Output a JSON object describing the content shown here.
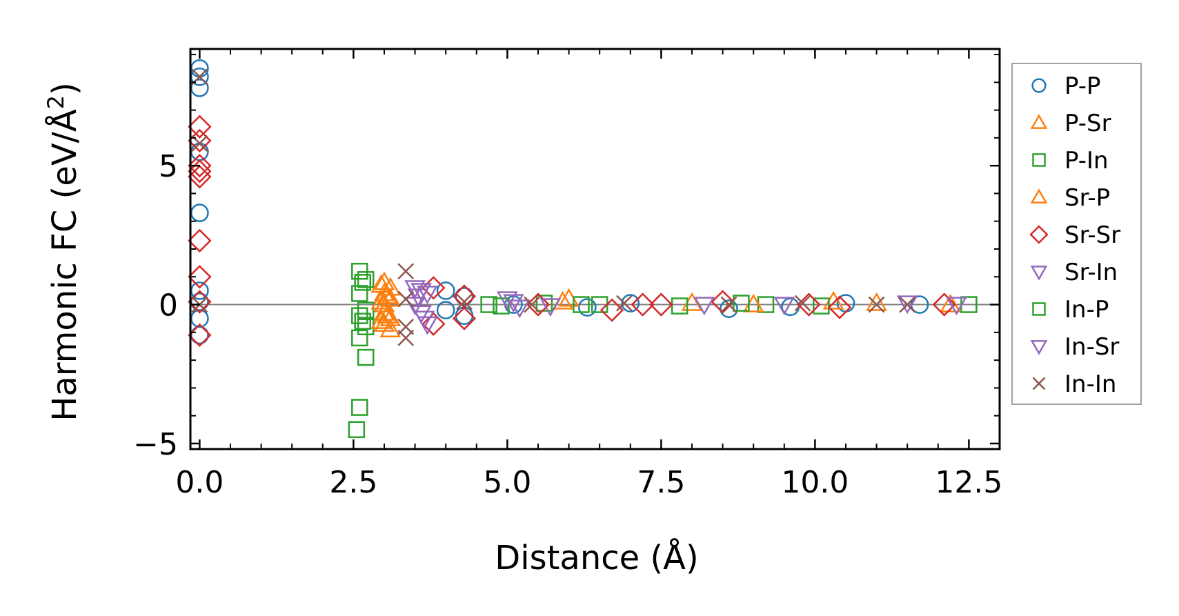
{
  "chart_data": {
    "type": "scatter",
    "title": "",
    "xlabel": "Distance (Å)",
    "ylabel_main": "Harmonic FC (eV/Å",
    "ylabel_sup": "2",
    "ylabel_close": ")",
    "xlim": [
      -0.15,
      13.0
    ],
    "ylim": [
      -5.2,
      9.2
    ],
    "x_ticks": [
      0.0,
      2.5,
      5.0,
      7.5,
      10.0,
      12.5
    ],
    "x_tick_labels": [
      "0.0",
      "2.5",
      "5.0",
      "7.5",
      "10.0",
      "12.5"
    ],
    "y_ticks": [
      -5,
      0,
      5
    ],
    "y_tick_labels": [
      "−5",
      "0",
      "5"
    ],
    "zero_line": 0,
    "legend_position": "right-outside",
    "series": [
      {
        "name": "P-P",
        "marker": "circle",
        "color": "#1f77b4",
        "points": [
          [
            0,
            8.5
          ],
          [
            0,
            8.2
          ],
          [
            0,
            7.8
          ],
          [
            0,
            5.5
          ],
          [
            0,
            3.3
          ],
          [
            0,
            0.5
          ],
          [
            0,
            0.1
          ],
          [
            0,
            -0.5
          ],
          [
            0,
            -1.1
          ],
          [
            4.0,
            0.5
          ],
          [
            4.0,
            -0.2
          ],
          [
            4.3,
            0.3
          ],
          [
            4.3,
            -0.4
          ],
          [
            5.1,
            0.0
          ],
          [
            6.3,
            -0.1
          ],
          [
            7.0,
            0.05
          ],
          [
            8.6,
            -0.15
          ],
          [
            9.6,
            -0.08
          ],
          [
            10.5,
            0.05
          ],
          [
            11.7,
            0.0
          ]
        ]
      },
      {
        "name": "P-Sr",
        "marker": "triangle-up",
        "color": "#ff7f0e",
        "points": [
          [
            3.0,
            0.8
          ],
          [
            3.0,
            0.4
          ],
          [
            3.0,
            0.0
          ],
          [
            3.0,
            -0.3
          ],
          [
            3.0,
            -0.7
          ],
          [
            3.1,
            0.6
          ],
          [
            3.1,
            0.2
          ],
          [
            3.1,
            -0.5
          ],
          [
            3.1,
            -0.9
          ],
          [
            5.9,
            0.1
          ],
          [
            8.0,
            0.05
          ],
          [
            10.3,
            0.1
          ],
          [
            12.2,
            0.0
          ]
        ]
      },
      {
        "name": "P-In",
        "marker": "square",
        "color": "#2ca02c",
        "points": [
          [
            2.6,
            1.2
          ],
          [
            2.6,
            0.4
          ],
          [
            2.6,
            -0.4
          ],
          [
            2.6,
            -1.2
          ],
          [
            2.6,
            -3.7
          ],
          [
            2.55,
            -4.5
          ],
          [
            2.7,
            0.9
          ],
          [
            2.7,
            -0.2
          ],
          [
            2.7,
            -0.8
          ],
          [
            2.7,
            -1.9
          ],
          [
            4.7,
            0.0
          ],
          [
            5.6,
            0.05
          ],
          [
            6.5,
            0.0
          ],
          [
            7.8,
            -0.05
          ],
          [
            9.2,
            0.0
          ],
          [
            10.1,
            -0.05
          ],
          [
            12.5,
            0.0
          ]
        ]
      },
      {
        "name": "Sr-P",
        "marker": "triangle-up",
        "color": "#ff7f0e",
        "points": [
          [
            2.95,
            0.7
          ],
          [
            2.95,
            0.1
          ],
          [
            2.95,
            -0.6
          ],
          [
            3.05,
            0.3
          ],
          [
            3.05,
            -0.4
          ],
          [
            6.0,
            0.2
          ],
          [
            9.0,
            0.0
          ],
          [
            11.0,
            0.05
          ]
        ]
      },
      {
        "name": "Sr-Sr",
        "marker": "diamond",
        "color": "#d62728",
        "points": [
          [
            0,
            6.4
          ],
          [
            0,
            5.9
          ],
          [
            0,
            5.0
          ],
          [
            0,
            4.8
          ],
          [
            0,
            4.6
          ],
          [
            0,
            2.3
          ],
          [
            0,
            1.0
          ],
          [
            0,
            0.1
          ],
          [
            0,
            -1.1
          ],
          [
            3.8,
            0.6
          ],
          [
            3.8,
            -0.7
          ],
          [
            4.3,
            0.3
          ],
          [
            4.3,
            -0.5
          ],
          [
            5.5,
            0.0
          ],
          [
            6.7,
            -0.2
          ],
          [
            7.2,
            0.0
          ],
          [
            7.5,
            0.0
          ],
          [
            8.5,
            0.1
          ],
          [
            9.9,
            0.0
          ],
          [
            10.4,
            -0.1
          ],
          [
            12.1,
            0.0
          ]
        ]
      },
      {
        "name": "Sr-In",
        "marker": "triangle-down",
        "color": "#9467bd",
        "points": [
          [
            3.5,
            0.6
          ],
          [
            3.5,
            0.0
          ],
          [
            3.6,
            0.5
          ],
          [
            3.6,
            -0.3
          ],
          [
            3.7,
            0.4
          ],
          [
            3.7,
            -0.7
          ],
          [
            5.0,
            0.2
          ],
          [
            5.2,
            -0.1
          ],
          [
            8.2,
            0.0
          ],
          [
            11.5,
            0.05
          ],
          [
            12.3,
            0.0
          ]
        ]
      },
      {
        "name": "In-P",
        "marker": "square",
        "color": "#2ca02c",
        "points": [
          [
            2.65,
            0.8
          ],
          [
            2.65,
            -0.6
          ],
          [
            4.9,
            -0.05
          ],
          [
            6.2,
            0.0
          ],
          [
            8.8,
            0.05
          ]
        ]
      },
      {
        "name": "In-Sr",
        "marker": "triangle-down",
        "color": "#9467bd",
        "points": [
          [
            3.55,
            0.3
          ],
          [
            3.65,
            -0.5
          ],
          [
            5.1,
            0.1
          ],
          [
            5.7,
            -0.05
          ],
          [
            9.5,
            0.0
          ]
        ]
      },
      {
        "name": "In-In",
        "marker": "x",
        "color": "#8c564b",
        "points": [
          [
            0,
            8.2
          ],
          [
            0,
            5.8
          ],
          [
            0,
            0.0
          ],
          [
            3.35,
            1.2
          ],
          [
            3.35,
            0.2
          ],
          [
            3.35,
            -0.8
          ],
          [
            3.35,
            -1.2
          ],
          [
            4.3,
            0.1
          ],
          [
            5.4,
            0.0
          ],
          [
            6.9,
            0.05
          ],
          [
            8.6,
            0.0
          ],
          [
            9.8,
            0.05
          ],
          [
            11.0,
            0.0
          ],
          [
            11.5,
            0.0
          ]
        ]
      }
    ]
  }
}
